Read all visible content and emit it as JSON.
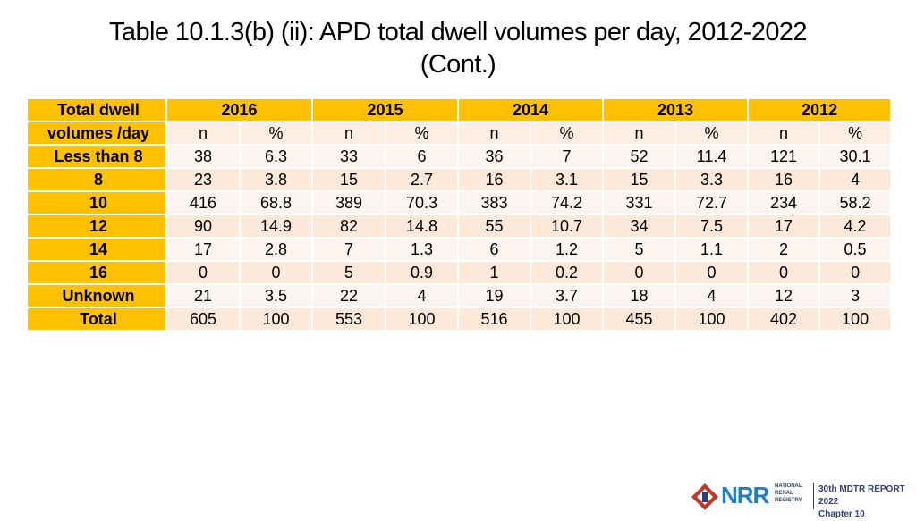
{
  "title": {
    "line1": "Table 10.1.3(b) (ii): APD total dwell volumes per day, 2012-2022",
    "line2": "(Cont.)"
  },
  "table": {
    "corner_label_1": "Total dwell",
    "corner_label_2": "volumes /day",
    "years": [
      "2016",
      "2015",
      "2014",
      "2013",
      "2012"
    ],
    "sub_n": "n",
    "sub_pct": "%",
    "rows": [
      {
        "label": "Less than 8",
        "values": [
          "38",
          "6.3",
          "33",
          "6",
          "36",
          "7",
          "52",
          "11.4",
          "121",
          "30.1"
        ]
      },
      {
        "label": "8",
        "values": [
          "23",
          "3.8",
          "15",
          "2.7",
          "16",
          "3.1",
          "15",
          "3.3",
          "16",
          "4"
        ]
      },
      {
        "label": "10",
        "values": [
          "416",
          "68.8",
          "389",
          "70.3",
          "383",
          "74.2",
          "331",
          "72.7",
          "234",
          "58.2"
        ]
      },
      {
        "label": "12",
        "values": [
          "90",
          "14.9",
          "82",
          "14.8",
          "55",
          "10.7",
          "34",
          "7.5",
          "17",
          "4.2"
        ]
      },
      {
        "label": "14",
        "values": [
          "17",
          "2.8",
          "7",
          "1.3",
          "6",
          "1.2",
          "5",
          "1.1",
          "2",
          "0.5"
        ]
      },
      {
        "label": "16",
        "values": [
          "0",
          "0",
          "5",
          "0.9",
          "1",
          "0.2",
          "0",
          "0",
          "0",
          "0"
        ]
      },
      {
        "label": "Unknown",
        "values": [
          "21",
          "3.5",
          "22",
          "4",
          "19",
          "3.7",
          "18",
          "4",
          "12",
          "3"
        ]
      },
      {
        "label": "Total",
        "values": [
          "605",
          "100",
          "553",
          "100",
          "516",
          "100",
          "455",
          "100",
          "402",
          "100"
        ]
      }
    ]
  },
  "footer": {
    "logo_text": "NRR",
    "registry_line1": "NATIONAL",
    "registry_line2": "RENAL",
    "registry_line3": "REGISTRY",
    "report_title": "30th MDTR REPORT 2022",
    "chapter": "Chapter 10"
  },
  "colors": {
    "header": "#ffc000",
    "cell": "#fde9d9",
    "logo_blue": "#1f7fc8",
    "logo_navy": "#2b3f7f"
  }
}
